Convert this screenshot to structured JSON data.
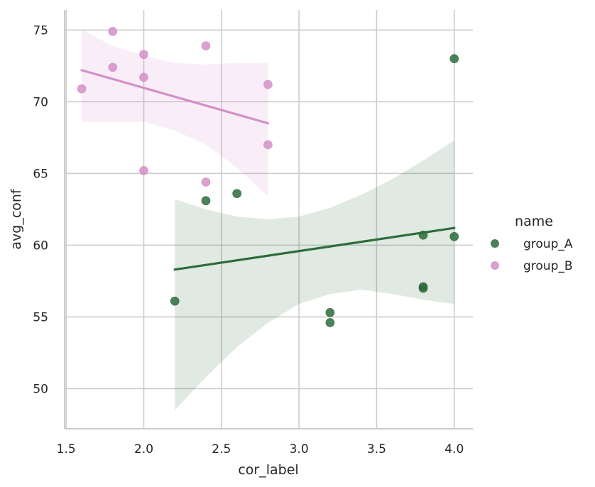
{
  "chart_data": {
    "type": "scatter",
    "title": "",
    "xlabel": "cor_label",
    "ylabel": "avg_conf",
    "xlim": [
      1.49,
      4.12
    ],
    "ylim": [
      47.2,
      76.4
    ],
    "xticks": [
      1.5,
      2.0,
      2.5,
      3.0,
      3.5,
      4.0
    ],
    "xtick_labels": [
      "1.5",
      "2.0",
      "2.5",
      "3.0",
      "3.5",
      "4.0"
    ],
    "yticks": [
      50,
      55,
      60,
      65,
      70,
      75
    ],
    "ytick_labels": [
      "50",
      "55",
      "60",
      "65",
      "70",
      "75"
    ],
    "grid": true,
    "legend": {
      "title": "name",
      "placement": "right"
    },
    "series": [
      {
        "name": "group_A",
        "color": "#2e6b3a",
        "points": [
          {
            "x": 2.2,
            "y": 56.1
          },
          {
            "x": 2.4,
            "y": 63.1
          },
          {
            "x": 2.6,
            "y": 63.6
          },
          {
            "x": 3.2,
            "y": 55.3
          },
          {
            "x": 3.2,
            "y": 54.6
          },
          {
            "x": 3.8,
            "y": 60.7
          },
          {
            "x": 3.8,
            "y": 57.1
          },
          {
            "x": 3.8,
            "y": 57.0
          },
          {
            "x": 4.0,
            "y": 73.0
          },
          {
            "x": 4.0,
            "y": 60.6
          }
        ],
        "regression": {
          "x": [
            2.2,
            4.0
          ],
          "y": [
            58.3,
            61.2
          ]
        },
        "ci_band": {
          "x": [
            2.2,
            2.4,
            2.6,
            2.8,
            3.0,
            3.2,
            3.4,
            3.6,
            3.8,
            4.0
          ],
          "upper": [
            63.2,
            62.5,
            62.0,
            61.8,
            62.0,
            62.6,
            63.5,
            64.6,
            65.9,
            67.3
          ],
          "lower": [
            48.5,
            50.8,
            52.9,
            54.6,
            55.9,
            56.6,
            56.9,
            56.6,
            56.2,
            55.9
          ]
        }
      },
      {
        "name": "group_B",
        "color": "#d48fc8",
        "points": [
          {
            "x": 1.6,
            "y": 70.9
          },
          {
            "x": 1.8,
            "y": 74.9
          },
          {
            "x": 1.8,
            "y": 72.4
          },
          {
            "x": 2.0,
            "y": 73.3
          },
          {
            "x": 2.0,
            "y": 71.7
          },
          {
            "x": 2.0,
            "y": 65.2
          },
          {
            "x": 2.4,
            "y": 73.9
          },
          {
            "x": 2.4,
            "y": 64.4
          },
          {
            "x": 2.8,
            "y": 71.2
          },
          {
            "x": 2.8,
            "y": 67.0
          }
        ],
        "regression": {
          "x": [
            1.6,
            2.8
          ],
          "y": [
            72.2,
            68.5
          ]
        },
        "ci_band": {
          "x": [
            1.6,
            1.8,
            2.0,
            2.2,
            2.4,
            2.6,
            2.8
          ],
          "upper": [
            75.0,
            73.9,
            73.2,
            72.7,
            72.6,
            72.7,
            72.7
          ],
          "lower": [
            68.6,
            68.6,
            68.6,
            68.0,
            67.0,
            65.4,
            63.4
          ]
        }
      }
    ]
  }
}
